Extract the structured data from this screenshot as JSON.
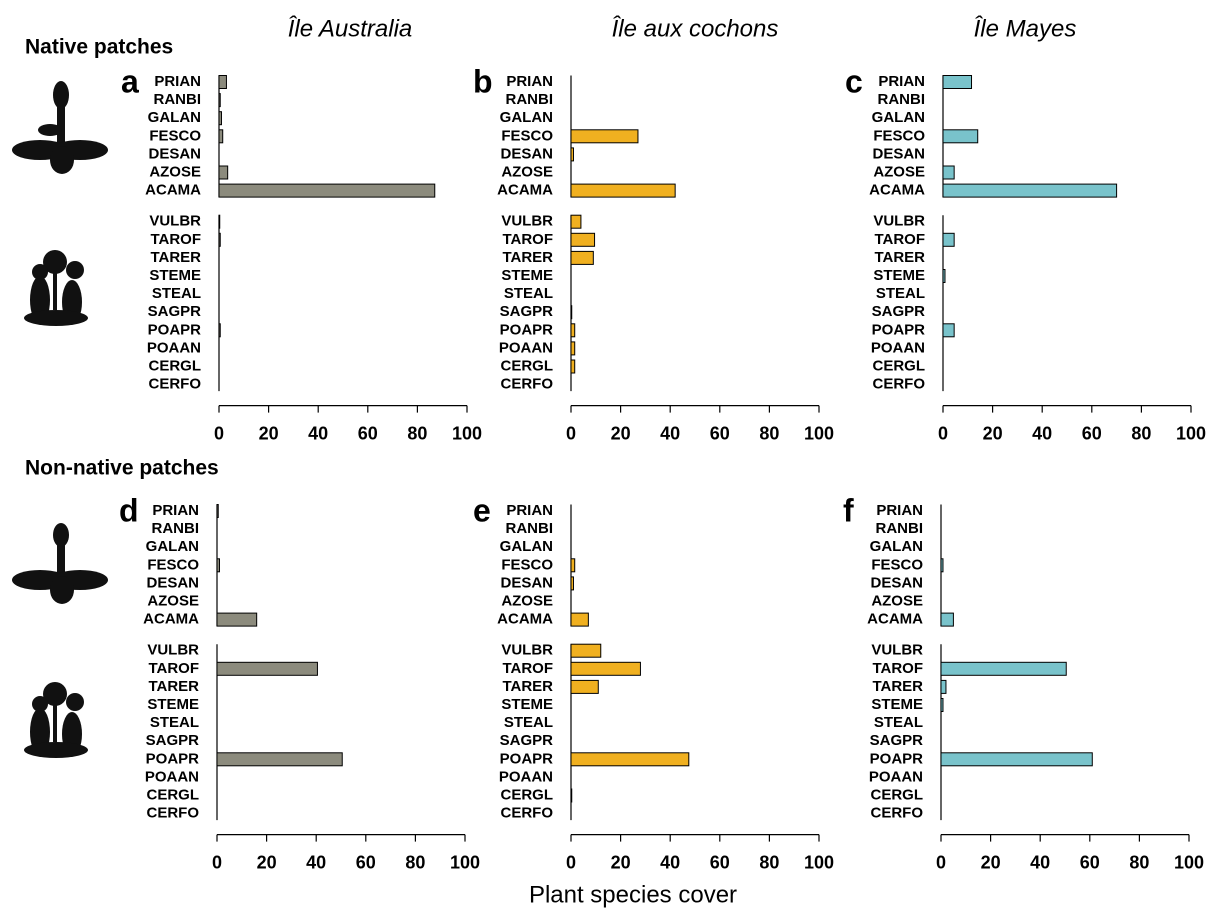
{
  "figure": {
    "column_titles": [
      "Île Australia",
      "Île aux cochons",
      "Île Mayes"
    ],
    "row_titles": [
      "Native patches",
      "Non-native patches"
    ],
    "xlabel": "Plant species cover"
  },
  "chart_data": [
    {
      "type": "bar",
      "title": "a",
      "categories": [
        "PRIAN",
        "RANBI",
        "GALAN",
        "FESCO",
        "DESAN",
        "AZOSE",
        "ACAMA",
        "VULBR",
        "TAROF",
        "TARER",
        "STEME",
        "STEAL",
        "SAGPR",
        "POAPR",
        "POAAN",
        "CERGL",
        "CERFO"
      ],
      "values": [
        3,
        0.5,
        1,
        1.5,
        0,
        3.5,
        87,
        0.3,
        0.5,
        0,
        0,
        0,
        0,
        0.5,
        0,
        0,
        0
      ],
      "color": "#8c8b7d",
      "xlim": [
        0,
        100
      ],
      "xticks": [
        0,
        20,
        40,
        60,
        80,
        100
      ]
    },
    {
      "type": "bar",
      "title": "b",
      "categories": [
        "PRIAN",
        "RANBI",
        "GALAN",
        "FESCO",
        "DESAN",
        "AZOSE",
        "ACAMA",
        "VULBR",
        "TAROF",
        "TARER",
        "STEME",
        "STEAL",
        "SAGPR",
        "POAPR",
        "POAAN",
        "CERGL",
        "CERFO"
      ],
      "values": [
        0,
        0,
        0,
        27,
        1,
        0,
        42,
        4,
        9.5,
        9,
        0,
        0,
        0.3,
        1.5,
        1.5,
        1.5,
        0
      ],
      "color": "#f0b020",
      "xlim": [
        0,
        100
      ],
      "xticks": [
        0,
        20,
        40,
        60,
        80,
        100
      ]
    },
    {
      "type": "bar",
      "title": "c",
      "categories": [
        "PRIAN",
        "RANBI",
        "GALAN",
        "FESCO",
        "DESAN",
        "AZOSE",
        "ACAMA",
        "VULBR",
        "TAROF",
        "TARER",
        "STEME",
        "STEAL",
        "SAGPR",
        "POAPR",
        "POAAN",
        "CERGL",
        "CERFO"
      ],
      "values": [
        11.5,
        0,
        0,
        14,
        0,
        4.5,
        70,
        0,
        4.5,
        0,
        0.8,
        0,
        0,
        4.5,
        0,
        0,
        0
      ],
      "color": "#79c3cb",
      "xlim": [
        0,
        100
      ],
      "xticks": [
        0,
        20,
        40,
        60,
        80,
        100
      ]
    },
    {
      "type": "bar",
      "title": "d",
      "categories": [
        "PRIAN",
        "RANBI",
        "GALAN",
        "FESCO",
        "DESAN",
        "AZOSE",
        "ACAMA",
        "VULBR",
        "TAROF",
        "TARER",
        "STEME",
        "STEAL",
        "SAGPR",
        "POAPR",
        "POAAN",
        "CERGL",
        "CERFO"
      ],
      "values": [
        0.5,
        0,
        0,
        1,
        0,
        0,
        16,
        0,
        40.5,
        0,
        0,
        0,
        0,
        50.5,
        0,
        0,
        0
      ],
      "color": "#8c8b7d",
      "xlim": [
        0,
        100
      ],
      "xticks": [
        0,
        20,
        40,
        60,
        80,
        100
      ]
    },
    {
      "type": "bar",
      "title": "e",
      "categories": [
        "PRIAN",
        "RANBI",
        "GALAN",
        "FESCO",
        "DESAN",
        "AZOSE",
        "ACAMA",
        "VULBR",
        "TAROF",
        "TARER",
        "STEME",
        "STEAL",
        "SAGPR",
        "POAPR",
        "POAAN",
        "CERGL",
        "CERFO"
      ],
      "values": [
        0,
        0,
        0,
        1.5,
        1,
        0,
        7,
        12,
        28,
        11,
        0,
        0,
        0,
        47.5,
        0,
        0.3,
        0
      ],
      "color": "#f0b020",
      "xlim": [
        0,
        100
      ],
      "xticks": [
        0,
        20,
        40,
        60,
        80,
        100
      ]
    },
    {
      "type": "bar",
      "title": "f",
      "categories": [
        "PRIAN",
        "RANBI",
        "GALAN",
        "FESCO",
        "DESAN",
        "AZOSE",
        "ACAMA",
        "VULBR",
        "TAROF",
        "TARER",
        "STEME",
        "STEAL",
        "SAGPR",
        "POAPR",
        "POAAN",
        "CERGL",
        "CERFO"
      ],
      "values": [
        0,
        0,
        0,
        0.8,
        0,
        0,
        5,
        0,
        50.5,
        2,
        0.8,
        0,
        0,
        61,
        0,
        0,
        0
      ],
      "color": "#79c3cb",
      "xlim": [
        0,
        100
      ],
      "xticks": [
        0,
        20,
        40,
        60,
        80,
        100
      ]
    }
  ]
}
